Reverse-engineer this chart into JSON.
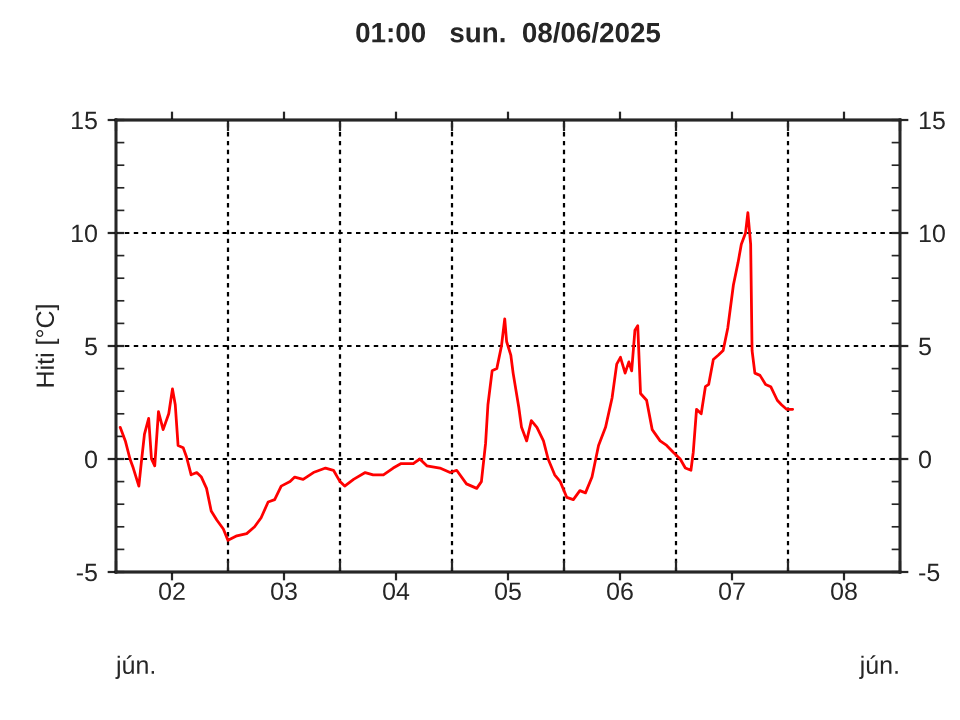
{
  "chart_data": {
    "type": "line",
    "title": "01:00   sun.  08/06/2025",
    "ylabel": "Hiti [°C]",
    "annotations": [
      "jún.",
      "jún."
    ],
    "series": [
      {
        "color": "#ff0000",
        "x": [
          "2025-06-02T00:54",
          "2025-06-02T02:00",
          "2025-06-02T03:00",
          "2025-06-02T03:42",
          "2025-06-02T04:54",
          "2025-06-02T05:24",
          "2025-06-02T06:06",
          "2025-06-02T07:00",
          "2025-06-02T07:36",
          "2025-06-02T08:18",
          "2025-06-02T09:06",
          "2025-06-02T10:06",
          "2025-06-02T11:18",
          "2025-06-02T12:06",
          "2025-06-02T12:42",
          "2025-06-02T13:18",
          "2025-06-02T14:24",
          "2025-06-02T15:06",
          "2025-06-02T16:06",
          "2025-06-02T17:18",
          "2025-06-02T18:18",
          "2025-06-02T19:24",
          "2025-06-02T20:24",
          "2025-06-02T21:36",
          "2025-06-02T23:00",
          "2025-06-03T00:00",
          "2025-06-03T01:54",
          "2025-06-03T04:00",
          "2025-06-03T05:42",
          "2025-06-03T07:06",
          "2025-06-03T08:36",
          "2025-06-03T10:00",
          "2025-06-03T11:24",
          "2025-06-03T13:18",
          "2025-06-03T14:18",
          "2025-06-03T16:06",
          "2025-06-03T18:18",
          "2025-06-03T20:54",
          "2025-06-03T22:36",
          "2025-06-04T00:00",
          "2025-06-04T01:00",
          "2025-06-04T02:54",
          "2025-06-04T05:24",
          "2025-06-04T07:06",
          "2025-06-04T09:18",
          "2025-06-04T11:24",
          "2025-06-04T13:06",
          "2025-06-04T15:42",
          "2025-06-04T17:06",
          "2025-06-04T18:36",
          "2025-06-04T21:24",
          "2025-06-04T23:36",
          "2025-06-05T01:00",
          "2025-06-05T03:06",
          "2025-06-05T05:18",
          "2025-06-05T06:18",
          "2025-06-05T07:12",
          "2025-06-05T07:42",
          "2025-06-05T08:36",
          "2025-06-05T09:36",
          "2025-06-05T10:36",
          "2025-06-05T11:18",
          "2025-06-05T11:42",
          "2025-06-05T12:36",
          "2025-06-05T13:06",
          "2025-06-05T14:18",
          "2025-06-05T14:54",
          "2025-06-05T16:00",
          "2025-06-05T17:00",
          "2025-06-05T18:12",
          "2025-06-05T19:36",
          "2025-06-05T20:36",
          "2025-06-05T22:00",
          "2025-06-05T23:12",
          "2025-06-06T00:36",
          "2025-06-06T02:00",
          "2025-06-06T03:24",
          "2025-06-06T04:36",
          "2025-06-06T06:00",
          "2025-06-06T07:24",
          "2025-06-06T08:54",
          "2025-06-06T10:18",
          "2025-06-06T11:18",
          "2025-06-06T12:06",
          "2025-06-06T13:06",
          "2025-06-06T13:54",
          "2025-06-06T14:30",
          "2025-06-06T15:12",
          "2025-06-06T15:48",
          "2025-06-06T16:24",
          "2025-06-06T17:42",
          "2025-06-06T18:54",
          "2025-06-06T20:36",
          "2025-06-06T22:00",
          "2025-06-06T23:24",
          "2025-06-07T00:54",
          "2025-06-07T02:00",
          "2025-06-07T03:12",
          "2025-06-07T03:42",
          "2025-06-07T04:24",
          "2025-06-07T05:24",
          "2025-06-07T06:18",
          "2025-06-07T07:00",
          "2025-06-07T08:00",
          "2025-06-07T09:06",
          "2025-06-07T10:06",
          "2025-06-07T11:06",
          "2025-06-07T12:18",
          "2025-06-07T13:18",
          "2025-06-07T14:00",
          "2025-06-07T14:54",
          "2025-06-07T15:24",
          "2025-06-07T16:00",
          "2025-06-07T16:18",
          "2025-06-07T16:54",
          "2025-06-07T18:00",
          "2025-06-07T19:12",
          "2025-06-07T20:18",
          "2025-06-07T21:42",
          "2025-06-07T22:36",
          "2025-06-07T23:42",
          "2025-06-08T01:00"
        ],
        "values": [
          1.4,
          0.8,
          0,
          -0.4,
          -1.2,
          -0.2,
          1.1,
          1.8,
          0,
          -0.3,
          2.1,
          1.3,
          2,
          3.1,
          2.4,
          0.6,
          0.5,
          0.1,
          -0.7,
          -0.6,
          -0.8,
          -1.3,
          -2.3,
          -2.7,
          -3.1,
          -3.6,
          -3.4,
          -3.3,
          -3,
          -2.6,
          -1.9,
          -1.8,
          -1.2,
          -1,
          -0.8,
          -0.9,
          -0.6,
          -0.4,
          -0.5,
          -1,
          -1.2,
          -0.9,
          -0.6,
          -0.7,
          -0.7,
          -0.4,
          -0.2,
          -0.2,
          0,
          -0.3,
          -0.4,
          -0.6,
          -0.5,
          -1.1,
          -1.3,
          -1,
          0.7,
          2.4,
          3.9,
          4,
          5,
          6.2,
          5.2,
          4.6,
          3.8,
          2.3,
          1.4,
          0.8,
          1.7,
          1.4,
          0.8,
          0,
          -0.7,
          -1,
          -1.7,
          -1.8,
          -1.4,
          -1.5,
          -0.8,
          0.6,
          1.4,
          2.7,
          4.2,
          4.5,
          3.8,
          4.3,
          3.9,
          5.7,
          5.9,
          2.9,
          2.6,
          1.3,
          0.8,
          0.6,
          0.3,
          0,
          -0.4,
          -0.5,
          0.3,
          2.2,
          2,
          3.2,
          3.3,
          4.4,
          4.6,
          4.8,
          5.8,
          7.7,
          8.7,
          9.5,
          10,
          10.9,
          9.5,
          4.8,
          3.8,
          3.7,
          3.3,
          3.2,
          2.6,
          2.4,
          2.2,
          2.2
        ]
      }
    ],
    "xlim": [
      "2025-06-02T00:00",
      "2025-06-09T00:00"
    ],
    "xticks": [
      {
        "value": "2025-06-02T00:00",
        "label": null
      },
      {
        "value": "2025-06-02T12:00",
        "label": "02"
      },
      {
        "value": "2025-06-03T00:00",
        "label": null
      },
      {
        "value": "2025-06-03T12:00",
        "label": "03"
      },
      {
        "value": "2025-06-04T00:00",
        "label": null
      },
      {
        "value": "2025-06-04T12:00",
        "label": "04"
      },
      {
        "value": "2025-06-05T00:00",
        "label": null
      },
      {
        "value": "2025-06-05T12:00",
        "label": "05"
      },
      {
        "value": "2025-06-06T00:00",
        "label": null
      },
      {
        "value": "2025-06-06T12:00",
        "label": "06"
      },
      {
        "value": "2025-06-07T00:00",
        "label": null
      },
      {
        "value": "2025-06-07T12:00",
        "label": "07"
      },
      {
        "value": "2025-06-08T00:00",
        "label": null
      },
      {
        "value": "2025-06-08T12:00",
        "label": "08"
      },
      {
        "value": "2025-06-09T00:00",
        "label": null
      }
    ],
    "ylim": [
      -5,
      15
    ],
    "yticks": [
      -5,
      0,
      5,
      10,
      15
    ],
    "y2lim": [
      -5,
      15
    ],
    "y2ticks": [
      -5,
      0,
      5,
      10,
      15
    ],
    "grid": true,
    "legend": false,
    "marker": "none",
    "line_style": "solid"
  }
}
